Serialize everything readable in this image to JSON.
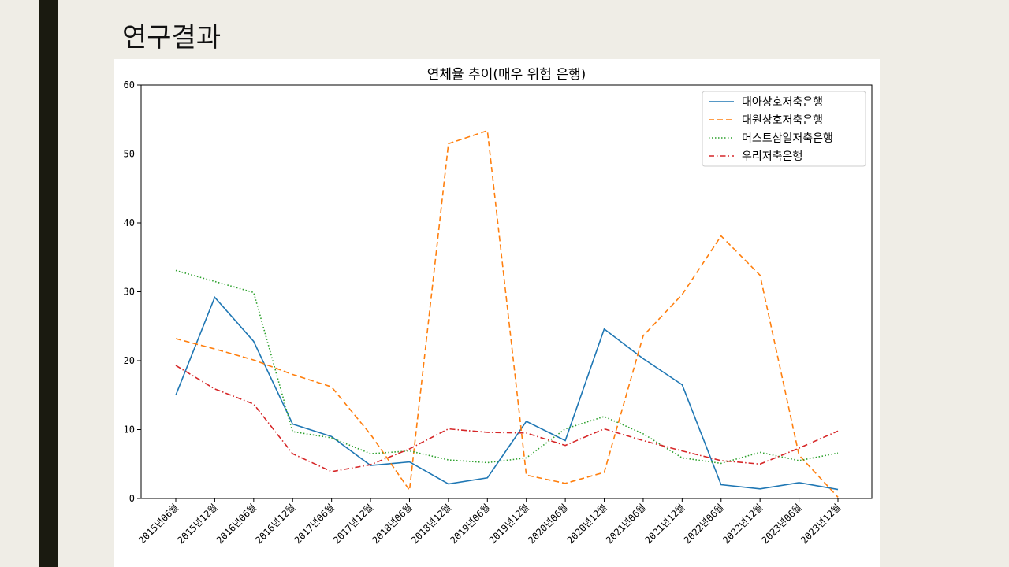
{
  "slide": {
    "title": "연구결과"
  },
  "chart_data": {
    "type": "line",
    "title": "연체율 추이(매우 위험 은행)",
    "xlabel": "",
    "ylabel": "",
    "ylim": [
      0,
      60
    ],
    "yticks": [
      0,
      10,
      20,
      30,
      40,
      50,
      60
    ],
    "grid": false,
    "legend_position": "top-right",
    "categories": [
      "2015년06월",
      "2015년12월",
      "2016년06월",
      "2016년12월",
      "2017년06월",
      "2017년12월",
      "2018년06월",
      "2018년12월",
      "2019년06월",
      "2019년12월",
      "2020년06월",
      "2020년12월",
      "2021년06월",
      "2021년12월",
      "2022년06월",
      "2022년12월",
      "2023년06월",
      "2023년12월"
    ],
    "series": [
      {
        "name": "대아상호저축은행",
        "color": "#1f77b4",
        "dash": "solid",
        "values": [
          15.0,
          29.2,
          22.8,
          10.8,
          9.0,
          4.8,
          5.3,
          2.1,
          3.0,
          11.2,
          8.4,
          24.6,
          20.3,
          16.5,
          2.0,
          1.4,
          2.3,
          1.3
        ]
      },
      {
        "name": "대원상호저축은행",
        "color": "#ff7f0e",
        "dash": "dashed",
        "values": [
          23.2,
          21.7,
          20.1,
          18.0,
          16.2,
          9.3,
          1.2,
          51.5,
          53.4,
          3.4,
          2.2,
          3.8,
          23.6,
          29.6,
          38.1,
          32.4,
          6.3,
          0.2
        ]
      },
      {
        "name": "머스트삼일저축은행",
        "color": "#2ca02c",
        "dash": "dotted",
        "values": [
          33.1,
          31.5,
          29.9,
          9.7,
          8.8,
          6.5,
          6.9,
          5.6,
          5.2,
          5.9,
          10.1,
          11.9,
          9.4,
          5.9,
          5.1,
          6.7,
          5.5,
          6.6
        ]
      },
      {
        "name": "우리저축은행",
        "color": "#d62728",
        "dash": "dashdot",
        "values": [
          19.3,
          15.9,
          13.7,
          6.5,
          3.9,
          4.9,
          7.2,
          10.1,
          9.6,
          9.5,
          7.7,
          10.1,
          8.4,
          6.9,
          5.5,
          5.0,
          7.3,
          9.8
        ]
      }
    ]
  }
}
